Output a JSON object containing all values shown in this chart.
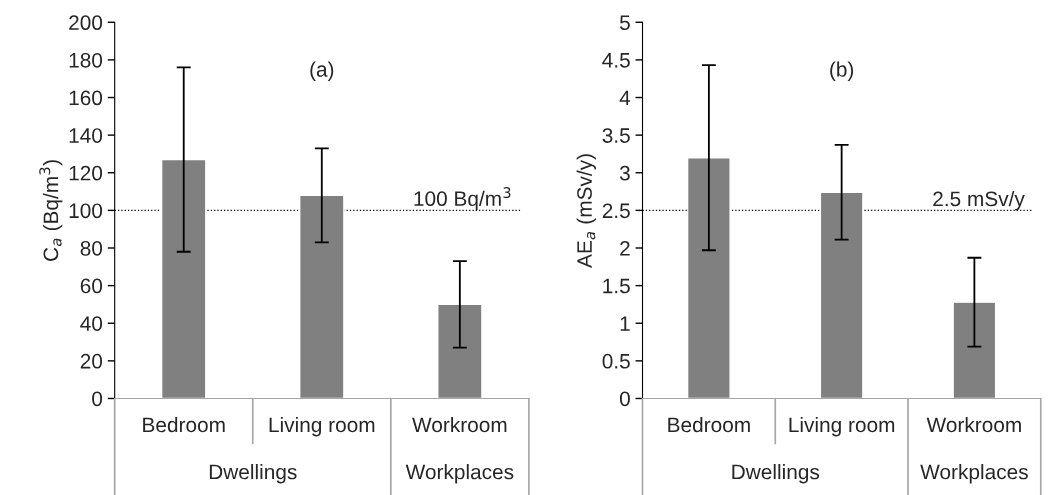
{
  "chart_data": [
    {
      "type": "bar",
      "title": "(a)",
      "ylabel": "C$_{a}$ (Bq/m$^{3}$)",
      "categories": [
        "Bedroom",
        "Living room",
        "Workroom"
      ],
      "values": [
        127,
        108,
        50
      ],
      "errors": [
        49,
        25,
        23
      ],
      "color": "#808080",
      "ylim": [
        0,
        200
      ],
      "yticks": [
        0,
        20,
        40,
        60,
        80,
        100,
        120,
        140,
        160,
        180,
        200
      ],
      "grid": false,
      "legend": false,
      "ref_lines": [
        {
          "axis": "y",
          "value": 100,
          "label": "100 Bq/m$^{3}$",
          "line_style": "dotted",
          "color": "#000000"
        }
      ],
      "annotations": [
        "Dwellings",
        "Workplaces"
      ]
    },
    {
      "type": "bar",
      "title": "(b)",
      "ylabel": "AE$_{a}$ (mSv/y)",
      "categories": [
        "Bedroom",
        "Living room",
        "Workroom"
      ],
      "values": [
        3.2,
        2.74,
        1.28
      ],
      "errors": [
        1.23,
        0.63,
        0.59
      ],
      "color": "#808080",
      "ylim": [
        0,
        5
      ],
      "yticks": [
        0,
        0.5,
        1,
        1.5,
        2,
        2.5,
        3,
        3.5,
        4,
        4.5,
        5
      ],
      "grid": false,
      "legend": false,
      "ref_lines": [
        {
          "axis": "y",
          "value": 2.5,
          "label": "2.5 mSv/y",
          "line_style": "dotted",
          "color": "#000000"
        }
      ],
      "annotations": [
        "Dwellings",
        "Workplaces"
      ]
    }
  ]
}
